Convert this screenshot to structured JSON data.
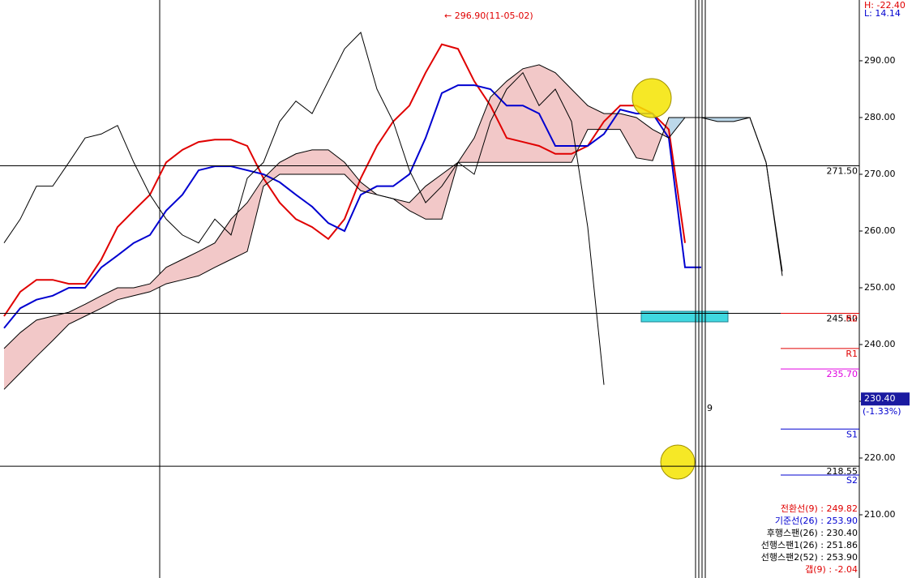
{
  "chart_data": {
    "type": "line",
    "annotation": "← 296.90(11-05-02)",
    "high_label": "H: -22.40",
    "low_label": "L: 14.14",
    "marker_label": "9",
    "categories": [
      null,
      null,
      null,
      null,
      null,
      null,
      null,
      null,
      null,
      null,
      null,
      null,
      null,
      null,
      null,
      null,
      null,
      null,
      null,
      null,
      null,
      null,
      null,
      null,
      null,
      null,
      null,
      null,
      null,
      null,
      null,
      null,
      null,
      null,
      null,
      null,
      null,
      null,
      null,
      null,
      null,
      null,
      null,
      null,
      null,
      null,
      null,
      null,
      null
    ],
    "series": [
      {
        "name": "전환선(9) : 249.82",
        "color": "#e00000",
        "width": 2,
        "values": [
          245.0,
          249.3,
          251.4,
          251.4,
          250.7,
          250.7,
          255.0,
          260.7,
          263.6,
          266.4,
          272.1,
          274.3,
          275.7,
          276.1,
          276.1,
          275.0,
          269.3,
          265.0,
          262.1,
          260.7,
          258.6,
          262.1,
          269.3,
          275.0,
          279.3,
          282.1,
          287.9,
          292.9,
          292.1,
          286.4,
          282.1,
          276.4,
          275.7,
          275.0,
          273.6,
          273.6,
          275.0,
          279.3,
          282.1,
          282.1,
          280.7,
          277.9,
          257.9,
          null,
          null,
          null,
          null,
          null,
          null
        ]
      },
      {
        "name": "기준선(26) : 253.90",
        "color": "#0000d0",
        "width": 2,
        "values": [
          242.9,
          246.4,
          247.9,
          248.6,
          250.0,
          250.0,
          253.6,
          255.7,
          257.9,
          259.3,
          263.6,
          266.4,
          270.7,
          271.4,
          271.4,
          270.7,
          270.0,
          268.6,
          266.4,
          264.3,
          261.4,
          260.0,
          266.4,
          267.9,
          267.9,
          270.0,
          276.4,
          284.3,
          285.7,
          285.7,
          285.0,
          282.1,
          282.1,
          280.7,
          275.0,
          275.0,
          275.0,
          277.1,
          281.4,
          280.7,
          280.7,
          276.4,
          253.6,
          253.6,
          null,
          null,
          null,
          null,
          null
        ]
      },
      {
        "name": "후행스팬(26) : 230.40",
        "color": "#000000",
        "width": 1,
        "values": [
          257.9,
          262.1,
          267.9,
          267.9,
          272.1,
          276.4,
          277.1,
          278.6,
          272.1,
          266.4,
          262.1,
          259.3,
          257.9,
          262.1,
          259.3,
          269.3,
          272.1,
          279.3,
          282.9,
          280.7,
          286.4,
          292.1,
          295.0,
          285.0,
          279.3,
          270.7,
          265.0,
          267.9,
          272.1,
          270.0,
          279.3,
          285.0,
          287.9,
          282.1,
          285.0,
          279.3,
          260.7,
          232.9,
          null,
          null,
          null,
          null,
          null,
          null,
          null,
          null,
          null,
          null,
          null
        ]
      },
      {
        "name": "선행스팬1(26) : 251.86",
        "color": "#000000",
        "width": 1,
        "values": [
          239.3,
          242.1,
          244.3,
          245.0,
          245.7,
          247.1,
          248.6,
          250.0,
          250.0,
          250.7,
          253.6,
          255.0,
          256.4,
          257.9,
          262.1,
          265.0,
          269.3,
          272.1,
          273.6,
          274.3,
          274.3,
          272.1,
          268.6,
          266.4,
          265.7,
          265.0,
          267.9,
          270.0,
          272.1,
          276.4,
          283.6,
          286.4,
          288.6,
          289.3,
          287.9,
          285.0,
          282.1,
          280.7,
          280.7,
          280.0,
          277.9,
          276.4,
          280.0,
          280.0,
          279.3,
          279.3,
          280.0,
          272.1,
          252.9
        ]
      },
      {
        "name": "선행스팬2(52) : 253.90",
        "color": "#000000",
        "width": 1,
        "values": [
          232.1,
          235.0,
          237.9,
          240.7,
          243.6,
          245.0,
          246.4,
          247.9,
          248.6,
          249.3,
          250.7,
          251.4,
          252.1,
          253.6,
          255.0,
          256.4,
          267.9,
          270.0,
          270.0,
          270.0,
          270.0,
          270.0,
          267.1,
          266.4,
          265.7,
          263.6,
          262.1,
          262.1,
          272.1,
          272.1,
          272.1,
          272.1,
          272.1,
          272.1,
          272.1,
          272.1,
          277.9,
          277.9,
          277.9,
          272.9,
          272.4,
          280.0,
          280.0,
          280.0,
          280.0,
          280.0,
          280.0,
          272.1,
          252.1
        ]
      }
    ],
    "gap_label": {
      "text": "갭(9) : -2.04",
      "color": "#e00000"
    },
    "cloud_colors": {
      "up": "#f2c8c8",
      "down": "#bcd8ea"
    },
    "ylim": [
      198.86,
      300.71
    ],
    "yticks": [
      {
        "value": 210,
        "label": "210.00"
      },
      {
        "value": 220,
        "label": "220.00"
      },
      {
        "value": 230,
        "label": "230.00"
      },
      {
        "value": 240,
        "label": "240.00"
      },
      {
        "value": 250,
        "label": "250.00"
      },
      {
        "value": 260,
        "label": "260.00"
      },
      {
        "value": 270,
        "label": "270.00"
      },
      {
        "value": 280,
        "label": "280.00"
      },
      {
        "value": 290,
        "label": "290.00"
      }
    ],
    "levels": [
      {
        "value": 271.5,
        "label": "271.50"
      },
      {
        "value": 245.5,
        "label": "245.50"
      },
      {
        "value": 218.55,
        "label": "218.55"
      }
    ],
    "pivots": [
      {
        "value": 245.5,
        "label": "R2",
        "color": "#e00000"
      },
      {
        "value": 239.3,
        "label": "R1",
        "color": "#e00000"
      },
      {
        "value": 235.7,
        "label": "235.70",
        "color": "#e000e0"
      },
      {
        "value": 225.1,
        "label": "S1",
        "color": "#0000d0"
      },
      {
        "value": 217.0,
        "label": "S2",
        "color": "#0000d0"
      }
    ],
    "current_price": {
      "value": 230.4,
      "label": "230.40",
      "change": "(-1.33%)"
    }
  }
}
